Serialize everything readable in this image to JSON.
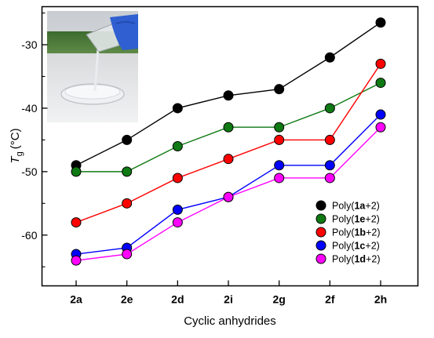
{
  "chart_data": {
    "type": "line",
    "categories": [
      "2a",
      "2e",
      "2d",
      "2i",
      "2g",
      "2f",
      "2h"
    ],
    "xlabel": "Cyclic anhydrides",
    "ylabel": {
      "symbol": "T",
      "subscript": "g",
      "unit": "(°C)"
    },
    "ylim": [
      -68,
      -24
    ],
    "yticks": [
      -60,
      -50,
      -40,
      -30
    ],
    "legend_position": "lower-right",
    "series": [
      {
        "name": "Poly(1a+2)",
        "name_parts": [
          "Poly(",
          "1a",
          "+2)"
        ],
        "color": "#000000",
        "values": [
          -49,
          -45,
          -40,
          -38,
          -37,
          -32,
          -26.5
        ]
      },
      {
        "name": "Poly(1e+2)",
        "name_parts": [
          "Poly(",
          "1e",
          "+2)"
        ],
        "color": "#0f7a13",
        "values": [
          -50,
          -50,
          -46,
          -43,
          -43,
          -40,
          -36
        ]
      },
      {
        "name": "Poly(1b+2)",
        "name_parts": [
          "Poly(",
          "1b",
          "+2)"
        ],
        "color": "#ff0000",
        "values": [
          -58,
          -55,
          -51,
          -48,
          -45,
          -45,
          -33
        ]
      },
      {
        "name": "Poly(1c+2)",
        "name_parts": [
          "Poly(",
          "1c",
          "+2)"
        ],
        "color": "#0000ff",
        "values": [
          -63,
          -62,
          -56,
          -54,
          -49,
          -49,
          -41
        ]
      },
      {
        "name": "Poly(1d+2)",
        "name_parts": [
          "Poly(",
          "1d",
          "+2)"
        ],
        "color": "#ff00ff",
        "values": [
          -64,
          -63,
          -58,
          -54,
          -51,
          -51,
          -43
        ]
      }
    ]
  }
}
